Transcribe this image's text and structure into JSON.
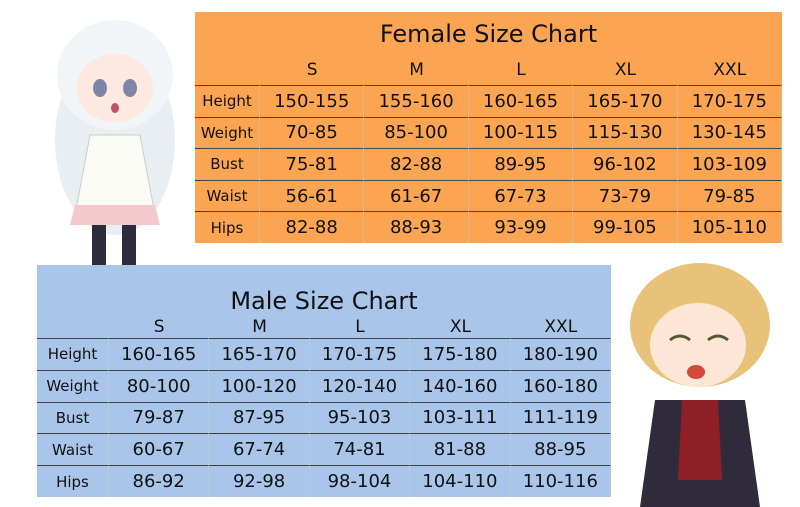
{
  "female": {
    "title": "Female Size Chart",
    "columns": [
      "S",
      "M",
      "L",
      "XL",
      "XXL"
    ],
    "rows": [
      [
        "Height",
        "150-155",
        "155-160",
        "160-165",
        "165-170",
        "170-175"
      ],
      [
        "Weight",
        "70-85",
        "85-100",
        "100-115",
        "115-130",
        "130-145"
      ],
      [
        "Bust",
        "75-81",
        "82-88",
        "89-95",
        "96-102",
        "103-109"
      ],
      [
        "Waist",
        "56-61",
        "61-67",
        "67-73",
        "73-79",
        "79-85"
      ],
      [
        "Hips",
        "82-88",
        "88-93",
        "93-99",
        "99-105",
        "105-110"
      ]
    ]
  },
  "male": {
    "title": "Male Size Chart",
    "columns": [
      "S",
      "M",
      "L",
      "XL",
      "XXL"
    ],
    "rows": [
      [
        "Height",
        "160-165",
        "165-170",
        "170-175",
        "175-180",
        "180-190"
      ],
      [
        "Weight",
        "80-100",
        "100-120",
        "120-140",
        "140-160",
        "160-180"
      ],
      [
        "Bust",
        "79-87",
        "87-95",
        "95-103",
        "103-111",
        "111-119"
      ],
      [
        "Waist",
        "60-67",
        "67-74",
        "74-81",
        "81-88",
        "88-95"
      ],
      [
        "Hips",
        "86-92",
        "92-98",
        "98-104",
        "104-110",
        "110-116"
      ]
    ]
  }
}
